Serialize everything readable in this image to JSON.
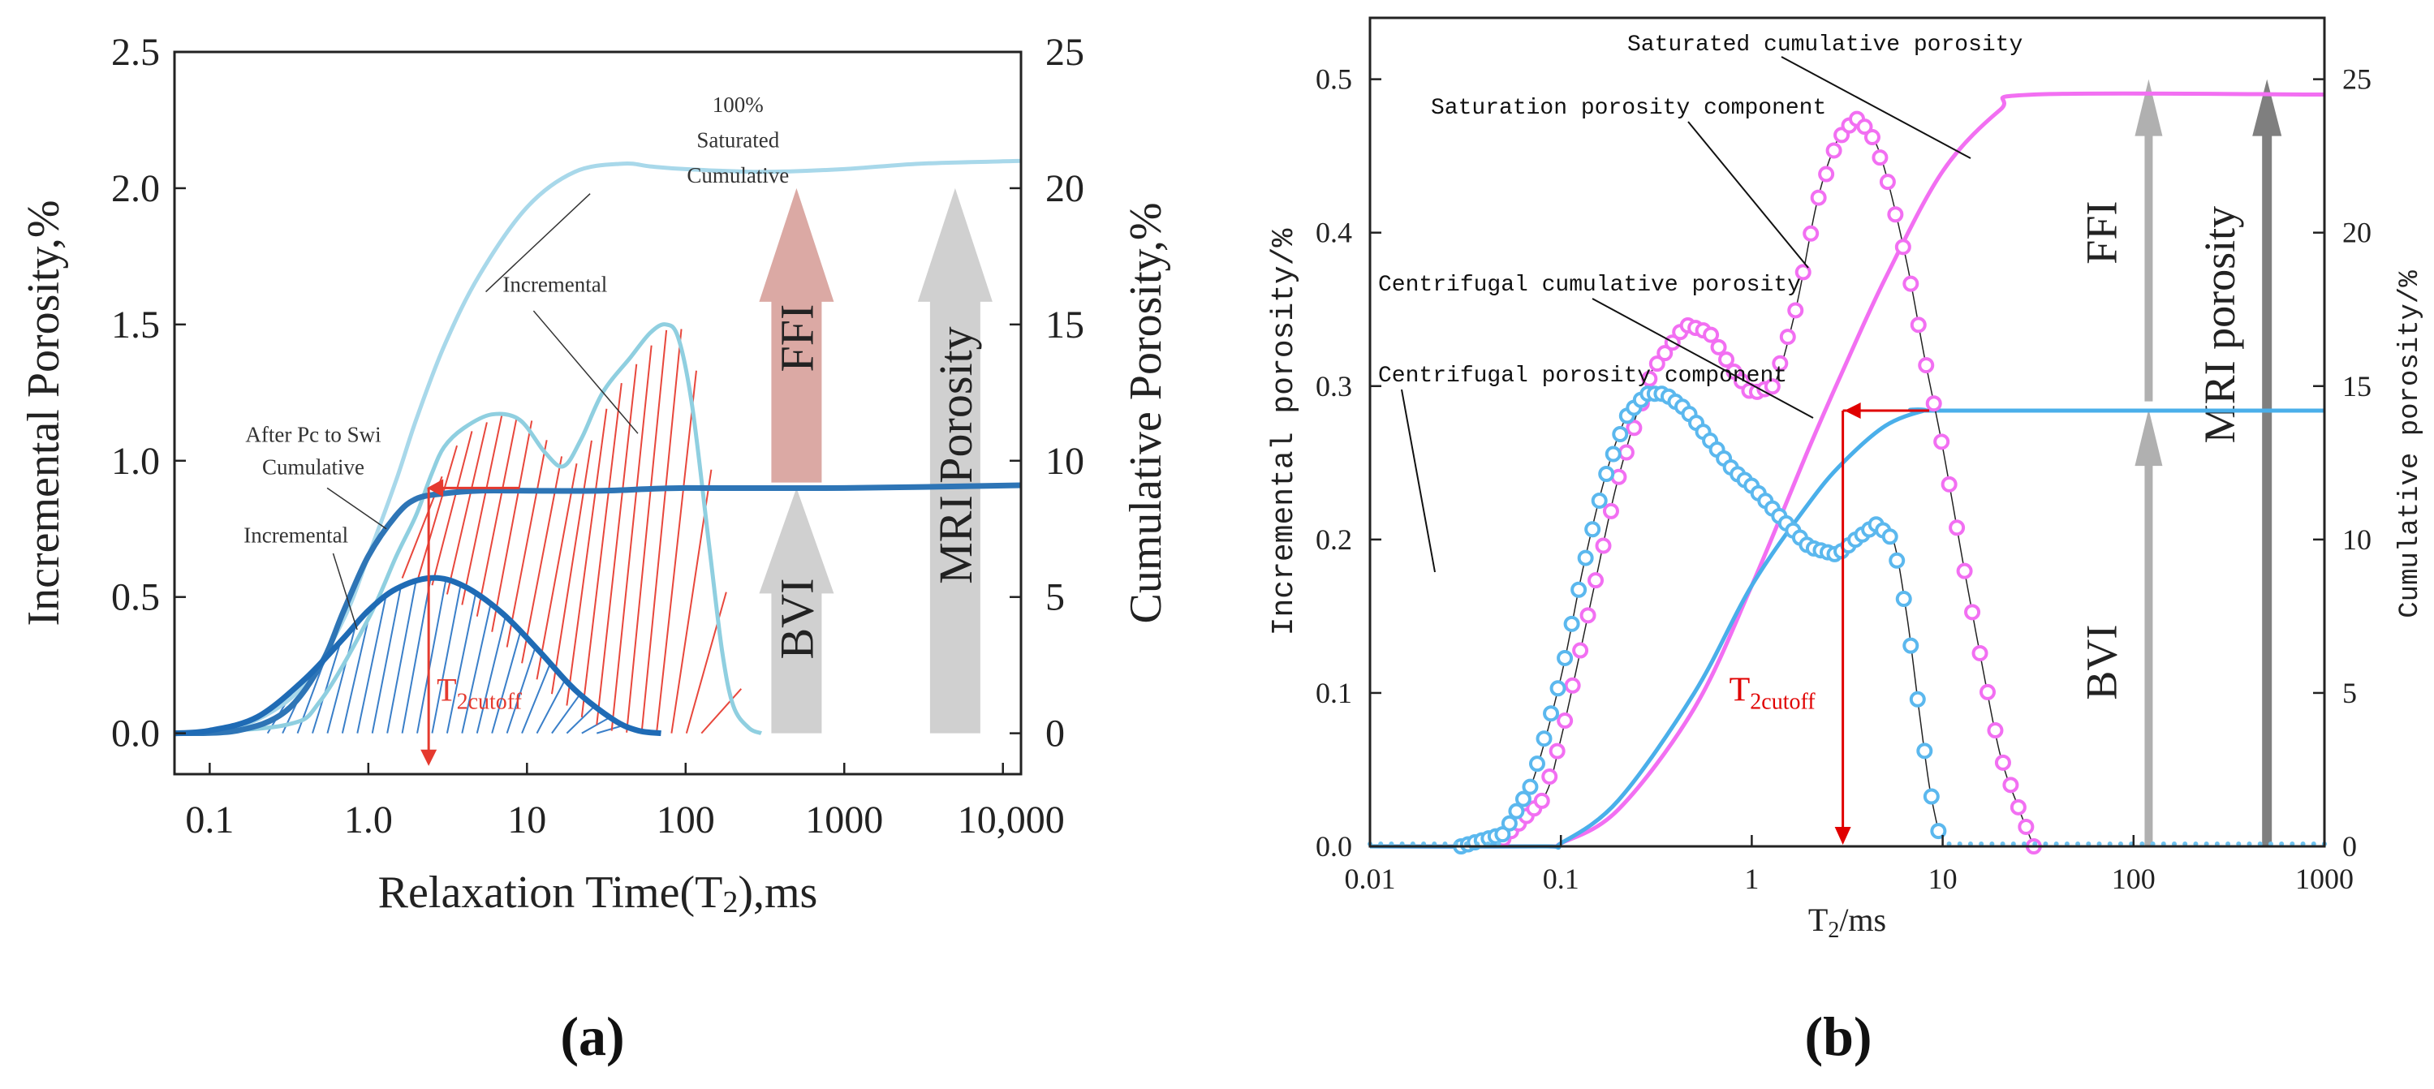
{
  "chart_data": [
    {
      "id": "a",
      "type": "line",
      "panel_label": "(a)",
      "xlabel": "Relaxation Time(T",
      "xlabel_sub": "2",
      "xlabel_end": "),ms",
      "ylabel": "Incremental Porosity,%",
      "y2label": "Cumulative Porosity,%",
      "xscale": "log",
      "xlim": [
        0.06,
        13000
      ],
      "ylim": [
        -0.15,
        2.5
      ],
      "y2lim": [
        -1.5,
        25
      ],
      "xticks": [
        0.1,
        1,
        10,
        100,
        1000,
        10000
      ],
      "xtick_labels": [
        "0.1",
        "1.0",
        "10",
        "100",
        "1000",
        "10,000"
      ],
      "yticks": [
        0,
        0.5,
        1.0,
        1.5,
        2.0,
        2.5
      ],
      "ytick_labels": [
        "0.0",
        "0.5",
        "1.0",
        "1.5",
        "2.0",
        "2.5"
      ],
      "y2ticks": [
        0,
        5,
        10,
        15,
        20,
        25
      ],
      "y2tick_labels": [
        "0",
        "5",
        "10",
        "15",
        "20",
        "25"
      ],
      "series": [
        {
          "name": "100% Saturated Cumulative",
          "axis": "y2",
          "color": "#a8d8ea",
          "x": [
            0.06,
            0.1,
            0.2,
            0.4,
            0.7,
            1,
            1.5,
            2,
            3,
            5,
            10,
            20,
            40,
            60,
            100,
            300,
            1000,
            3000,
            13000
          ],
          "y": [
            0,
            0.05,
            0.5,
            1.8,
            4.2,
            6.5,
            9.3,
            11.5,
            14.2,
            16.8,
            19.3,
            20.6,
            20.9,
            20.8,
            20.7,
            20.6,
            20.7,
            20.9,
            21.0
          ]
        },
        {
          "name": "100% Saturated Incremental",
          "axis": "y",
          "color": "#8fcfe0",
          "x": [
            0.06,
            0.3,
            0.5,
            1,
            1.5,
            2,
            2.5,
            3,
            4,
            6,
            9,
            13,
            17,
            22,
            30,
            45,
            60,
            75,
            90,
            110,
            140,
            170,
            200,
            250,
            300
          ],
          "y": [
            0,
            0.03,
            0.12,
            0.42,
            0.65,
            0.8,
            0.95,
            1.05,
            1.12,
            1.17,
            1.15,
            1.03,
            0.98,
            1.08,
            1.25,
            1.38,
            1.47,
            1.5,
            1.45,
            1.2,
            0.7,
            0.3,
            0.1,
            0.02,
            0
          ]
        },
        {
          "name": "After Pc to Swi Cumulative",
          "axis": "y2",
          "color": "#2e75b6",
          "x": [
            0.06,
            0.15,
            0.3,
            0.5,
            0.7,
            1,
            1.5,
            2,
            3,
            5,
            10,
            30,
            100,
            1000,
            13000
          ],
          "y": [
            0,
            0.1,
            0.8,
            2.5,
            4.5,
            6.5,
            8.0,
            8.6,
            8.8,
            8.9,
            8.9,
            8.9,
            9.0,
            9.0,
            9.1
          ]
        },
        {
          "name": "After Pc to Swi Incremental",
          "axis": "y",
          "color": "#1f6bb5",
          "x": [
            0.06,
            0.1,
            0.2,
            0.4,
            0.7,
            1,
            1.5,
            2.5,
            4,
            7,
            12,
            20,
            35,
            50,
            70
          ],
          "y": [
            0,
            0.01,
            0.06,
            0.2,
            0.35,
            0.45,
            0.53,
            0.57,
            0.54,
            0.44,
            0.3,
            0.16,
            0.05,
            0.01,
            0
          ]
        }
      ],
      "annotations": [
        {
          "text": "100%",
          "x": 30,
          "y": 2.26
        },
        {
          "text": "Saturated",
          "x": 30,
          "y": 2.14
        },
        {
          "text": "Cumulative",
          "x": 30,
          "y": 2.01
        },
        {
          "text": "Incremental",
          "x": 10,
          "y": 1.6
        },
        {
          "text": "After Pc to Swi",
          "x": 0.45,
          "y": 1.06
        },
        {
          "text": "Cumulative",
          "x": 0.45,
          "y": 0.95
        },
        {
          "text": "Incremental",
          "x": 0.35,
          "y": 0.7
        }
      ],
      "t2cutoff": {
        "label": "T",
        "label_sub": "2cutoff",
        "x": 2.4,
        "color": "#e53a2f"
      },
      "arrows": [
        {
          "label": "FFI",
          "x": 500,
          "y_from": 0.92,
          "y_to": 2.0,
          "color": "#dba9a4"
        },
        {
          "label": "BVI",
          "x": 500,
          "y_from": 0.0,
          "y_to": 0.9,
          "color": "#d0d0d0"
        },
        {
          "label": "MRI Porosity",
          "x": 5000,
          "y_from": 0.0,
          "y_to": 2.0,
          "color": "#d0d0d0"
        }
      ],
      "legend": "none"
    },
    {
      "id": "b",
      "type": "line",
      "panel_label": "(b)",
      "xlabel": "T",
      "xlabel_sub": "2",
      "xlabel_end": "/ms",
      "ylabel": "Incremental porosity/%",
      "y2label": "Cumulative porosity/%",
      "xscale": "log",
      "xlim": [
        0.01,
        1000
      ],
      "ylim": [
        0,
        0.54
      ],
      "y2lim": [
        0,
        27
      ],
      "xticks": [
        0.01,
        0.1,
        1,
        10,
        100,
        1000
      ],
      "xtick_labels": [
        "0.01",
        "0.1",
        "1",
        "10",
        "100",
        "1000"
      ],
      "yticks": [
        0,
        0.1,
        0.2,
        0.3,
        0.4,
        0.5
      ],
      "ytick_labels": [
        "0.0",
        "0.1",
        "0.2",
        "0.3",
        "0.4",
        "0.5"
      ],
      "y2ticks": [
        0,
        5,
        10,
        15,
        20,
        25
      ],
      "y2tick_labels": [
        "0",
        "5",
        "10",
        "15",
        "20",
        "25"
      ],
      "series": [
        {
          "name": "Saturated cumulative porosity",
          "axis": "y2",
          "color": "#f26ff2",
          "x": [
            0.01,
            0.08,
            0.1,
            0.2,
            0.5,
            1,
            2,
            3,
            5,
            10,
            20,
            30,
            1000
          ],
          "y": [
            0,
            0,
            0.1,
            1.2,
            4.5,
            8.5,
            13.0,
            15.5,
            18.5,
            22.0,
            24.0,
            24.5,
            24.5
          ]
        },
        {
          "name": "Saturation porosity component",
          "axis": "y",
          "color": "#f26ff2",
          "x": [
            0.05,
            0.08,
            0.1,
            0.15,
            0.2,
            0.3,
            0.45,
            0.6,
            0.8,
            1.0,
            1.3,
            1.7,
            2.2,
            2.8,
            3.5,
            4.2,
            5,
            6.5,
            8,
            10,
            13,
            16,
            20,
            25,
            30
          ],
          "y": [
            0.005,
            0.03,
            0.07,
            0.17,
            0.24,
            0.31,
            0.34,
            0.335,
            0.31,
            0.295,
            0.3,
            0.35,
            0.42,
            0.46,
            0.475,
            0.465,
            0.44,
            0.38,
            0.32,
            0.26,
            0.18,
            0.12,
            0.06,
            0.025,
            0.0
          ]
        },
        {
          "name": "Centrifugal cumulative porosity",
          "axis": "y2",
          "color": "#4aafea",
          "x": [
            0.01,
            0.08,
            0.1,
            0.2,
            0.5,
            1,
            2,
            3,
            5,
            8,
            10,
            1000
          ],
          "y": [
            0,
            0,
            0.1,
            1.5,
            5.0,
            8.5,
            11.2,
            12.5,
            13.7,
            14.2,
            14.2,
            14.2
          ]
        },
        {
          "name": "Centrifugal porosity component",
          "axis": "y",
          "color": "#5bb8ee",
          "x": [
            0.03,
            0.05,
            0.07,
            0.1,
            0.13,
            0.17,
            0.22,
            0.28,
            0.35,
            0.45,
            0.6,
            0.8,
            1.0,
            1.4,
            2.0,
            2.8,
            3.5,
            4.5,
            5.5,
            6.5,
            7.5,
            8.5,
            9.5
          ],
          "y": [
            0.0,
            0.008,
            0.04,
            0.11,
            0.18,
            0.24,
            0.28,
            0.295,
            0.295,
            0.285,
            0.265,
            0.245,
            0.235,
            0.215,
            0.195,
            0.19,
            0.2,
            0.21,
            0.2,
            0.15,
            0.09,
            0.04,
            0.01
          ]
        }
      ],
      "annotations": [
        {
          "text": "Saturated cumulative porosity"
        },
        {
          "text": "Saturation porosity component"
        },
        {
          "text": "Centrifugal cumulative porosity"
        },
        {
          "text": "Centrifugal porosity component"
        }
      ],
      "t2cutoff": {
        "label": "T",
        "label_sub": "2cutoff",
        "x": 3.0,
        "color": "#e00000"
      },
      "arrows": [
        {
          "label": "FFI",
          "x": 120,
          "y_from": 0.29,
          "y_to": 0.5,
          "color": "#b0b0b0"
        },
        {
          "label": "BVI",
          "x": 120,
          "y_from": 0.0,
          "y_to": 0.285,
          "color": "#b0b0b0"
        },
        {
          "label": "MRI porosity",
          "x": 500,
          "y_from": 0.0,
          "y_to": 0.5,
          "color": "#7f7f7f"
        }
      ],
      "legend": "none"
    }
  ]
}
